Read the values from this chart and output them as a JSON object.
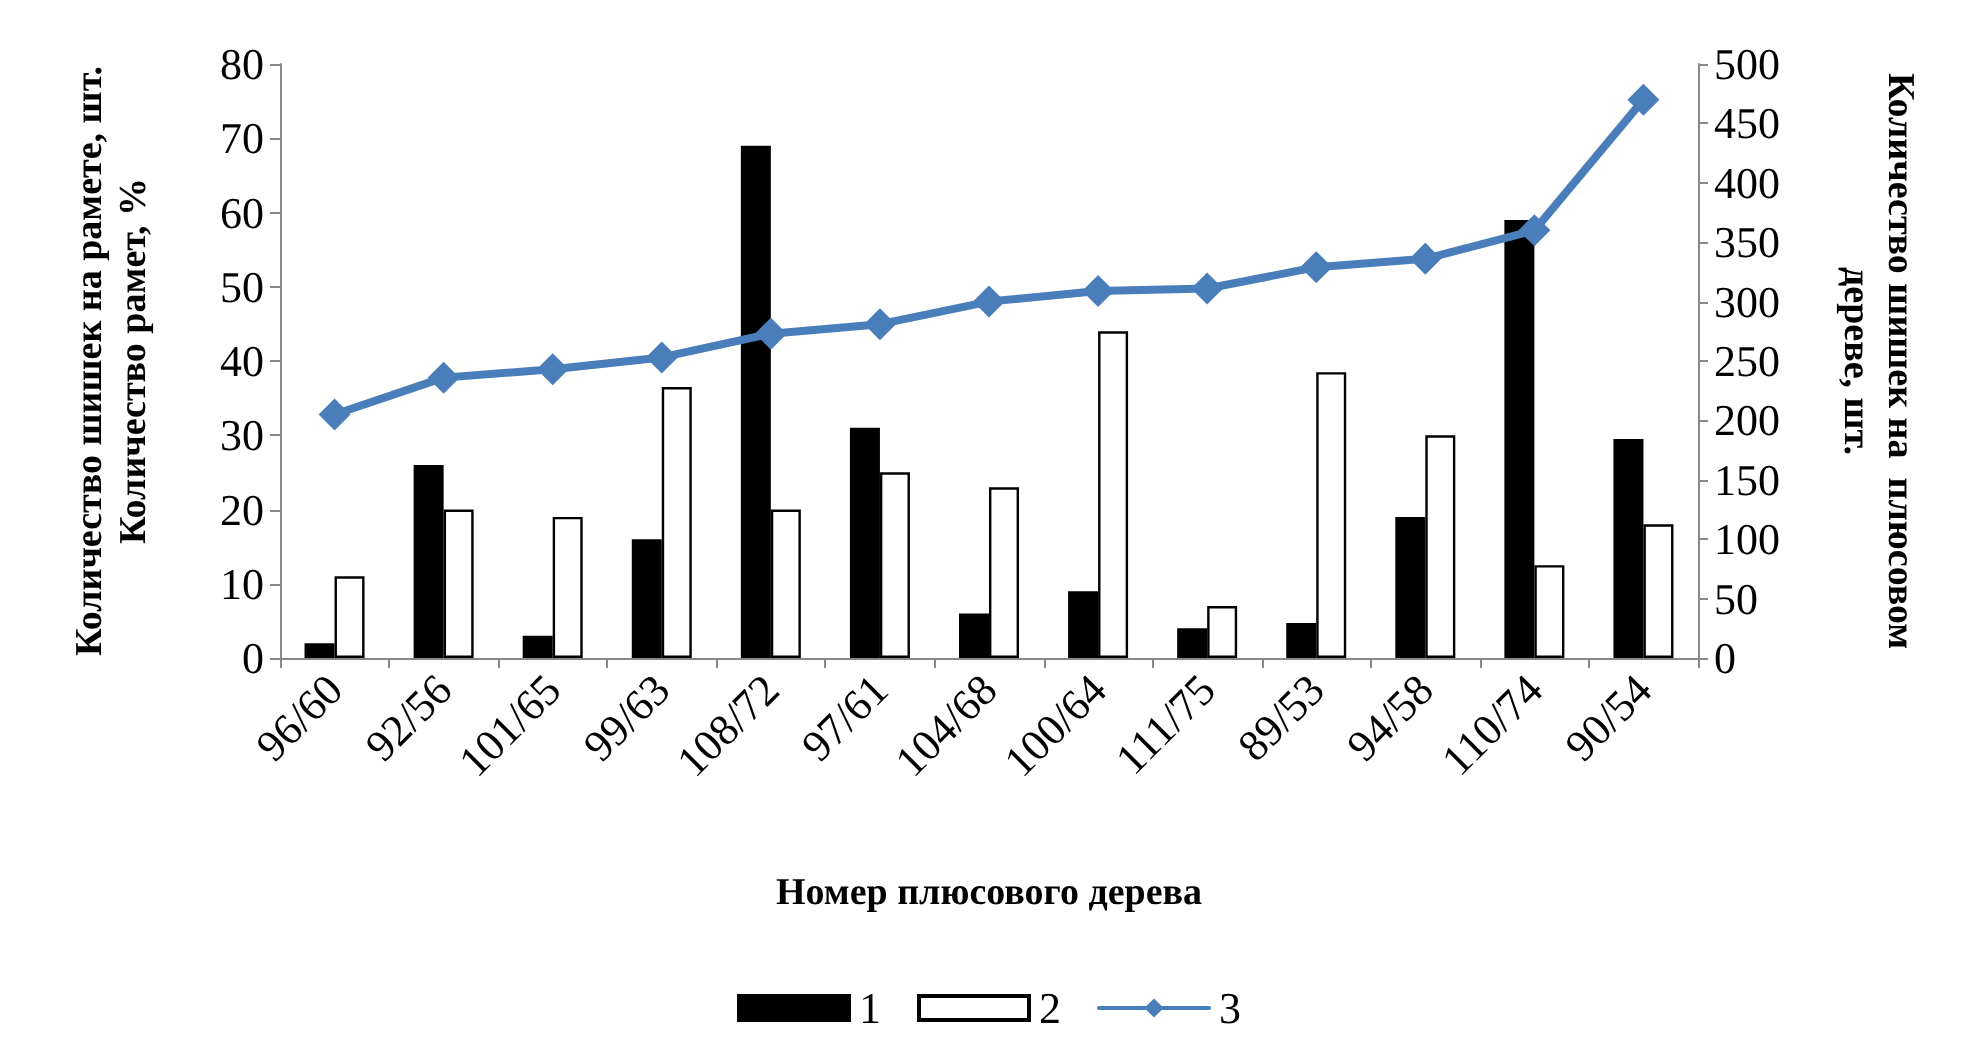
{
  "chart_data": {
    "type": "bar",
    "xlabel": "Номер плюсового дерева",
    "ylabel": "Количество шишек на рамете, шт.\nКоличество рамет, %",
    "y2label": "Количество шишек на  плюсовом\nдереве, шт.",
    "categories": [
      "96/60",
      "92/56",
      "101/65",
      "99/63",
      "108/72",
      "97/61",
      "104/68",
      "100/64",
      "111/75",
      "89/53",
      "94/58",
      "110/74",
      "90/54"
    ],
    "series": [
      {
        "name": "1",
        "color": "#000000",
        "values": [
          2,
          26,
          3,
          16,
          69,
          31,
          6,
          9,
          4,
          4.7,
          19,
          59,
          29.5
        ]
      },
      {
        "name": "2",
        "color": "#ffffff",
        "values": [
          11,
          20,
          19,
          36.5,
          20,
          25,
          23,
          44,
          7,
          38.5,
          30,
          12.5,
          18
        ]
      },
      {
        "name": "3",
        "type": "line",
        "axis": "y2",
        "color": "#4a7ebb",
        "values": [
          205,
          236,
          243,
          253,
          273,
          281,
          300,
          309,
          311,
          329,
          336,
          360,
          470
        ]
      }
    ],
    "ylim": [
      0,
      80
    ],
    "yticks": [
      0,
      10,
      20,
      30,
      40,
      50,
      60,
      70,
      80
    ],
    "y2lim": [
      0,
      500
    ],
    "y2ticks": [
      0,
      50,
      100,
      150,
      200,
      250,
      300,
      350,
      400,
      450,
      500
    ],
    "grid": false,
    "legend": "bottom",
    "marker": "diamond",
    "line_style": "solid"
  }
}
